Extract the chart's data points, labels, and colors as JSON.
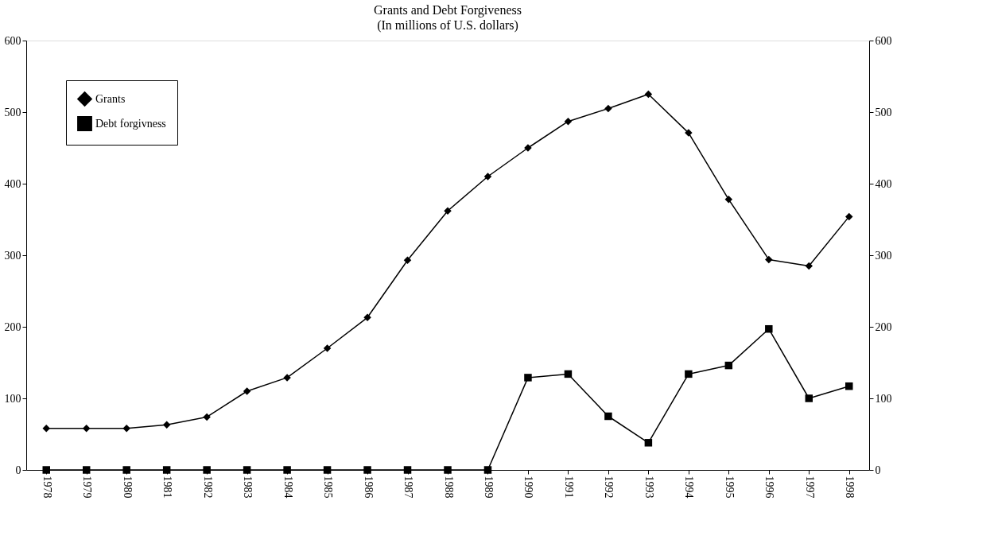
{
  "chart_data": {
    "type": "line",
    "title": "Grants and Debt Forgiveness",
    "subtitle": "(In millions of U.S. dollars)",
    "categories": [
      "1978",
      "1979",
      "1980",
      "1981",
      "1982",
      "1983",
      "1984",
      "1985",
      "1986",
      "1987",
      "1988",
      "1989",
      "1990",
      "1991",
      "1992",
      "1993",
      "1994",
      "1995",
      "1996",
      "1997",
      "1998"
    ],
    "series": [
      {
        "name": "Grants",
        "color": "#000000",
        "marker": "diamond",
        "values": [
          58,
          58,
          58,
          63,
          74,
          110,
          129,
          170,
          213,
          293,
          362,
          410,
          450,
          487,
          505,
          525,
          471,
          378,
          294,
          285,
          354
        ]
      },
      {
        "name": "Debt forgivness",
        "color": "#000000",
        "marker": "square",
        "values": [
          0,
          0,
          0,
          0,
          0,
          0,
          0,
          0,
          0,
          0,
          0,
          0,
          129,
          134,
          75,
          38,
          134,
          146,
          197,
          100,
          117
        ]
      }
    ],
    "ylim": [
      0,
      600
    ],
    "yticks": [
      0,
      100,
      200,
      300,
      400,
      500,
      600
    ],
    "y2lim": [
      0,
      600
    ],
    "y2ticks": [
      0,
      100,
      200,
      300,
      400,
      500,
      600
    ],
    "legend": "top left",
    "grid": false,
    "line_style": "solid"
  }
}
